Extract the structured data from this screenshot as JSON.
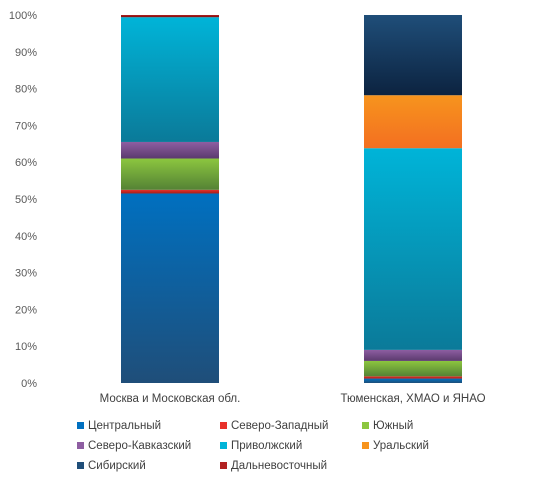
{
  "chart_data": {
    "type": "stacked-bar-100",
    "title": "",
    "xlabel": "",
    "ylabel": "",
    "ylim": [
      0,
      100
    ],
    "yticks": [
      "0%",
      "10%",
      "20%",
      "30%",
      "40%",
      "50%",
      "60%",
      "70%",
      "80%",
      "90%",
      "100%"
    ],
    "categories": [
      "Москва и Московская обл.",
      "Тюменская, ХМАО и ЯНАО"
    ],
    "legend_position": "bottom",
    "grid": false,
    "series": [
      {
        "name": "Центральный",
        "color": "#0070C0",
        "dark": "#1F4E79",
        "values": [
          51.5,
          1.2
        ]
      },
      {
        "name": "Северо-Западный",
        "color": "#E8312B",
        "dark": "#A31E1A",
        "values": [
          1.0,
          0.6
        ]
      },
      {
        "name": "Южный",
        "color": "#8CC63F",
        "dark": "#548235",
        "values": [
          8.5,
          4.2
        ]
      },
      {
        "name": "Северо-Кавказский",
        "color": "#8E5EA2",
        "dark": "#5B3A6E",
        "values": [
          4.5,
          3.0
        ]
      },
      {
        "name": "Приволжский",
        "color": "#00B4D8",
        "dark": "#0B7A99",
        "values": [
          33.9,
          54.8
        ]
      },
      {
        "name": "Уральский",
        "color": "#F7941D",
        "dark": "#F36F21",
        "values": [
          0,
          14.4
        ]
      },
      {
        "name": "Сибирский",
        "color": "#1F4E79",
        "dark": "#0C2340",
        "values": [
          0,
          21.8
        ]
      },
      {
        "name": "Дальневосточный",
        "color": "#B22222",
        "dark": "#7A0E0E",
        "values": [
          0.6,
          0
        ]
      }
    ]
  }
}
